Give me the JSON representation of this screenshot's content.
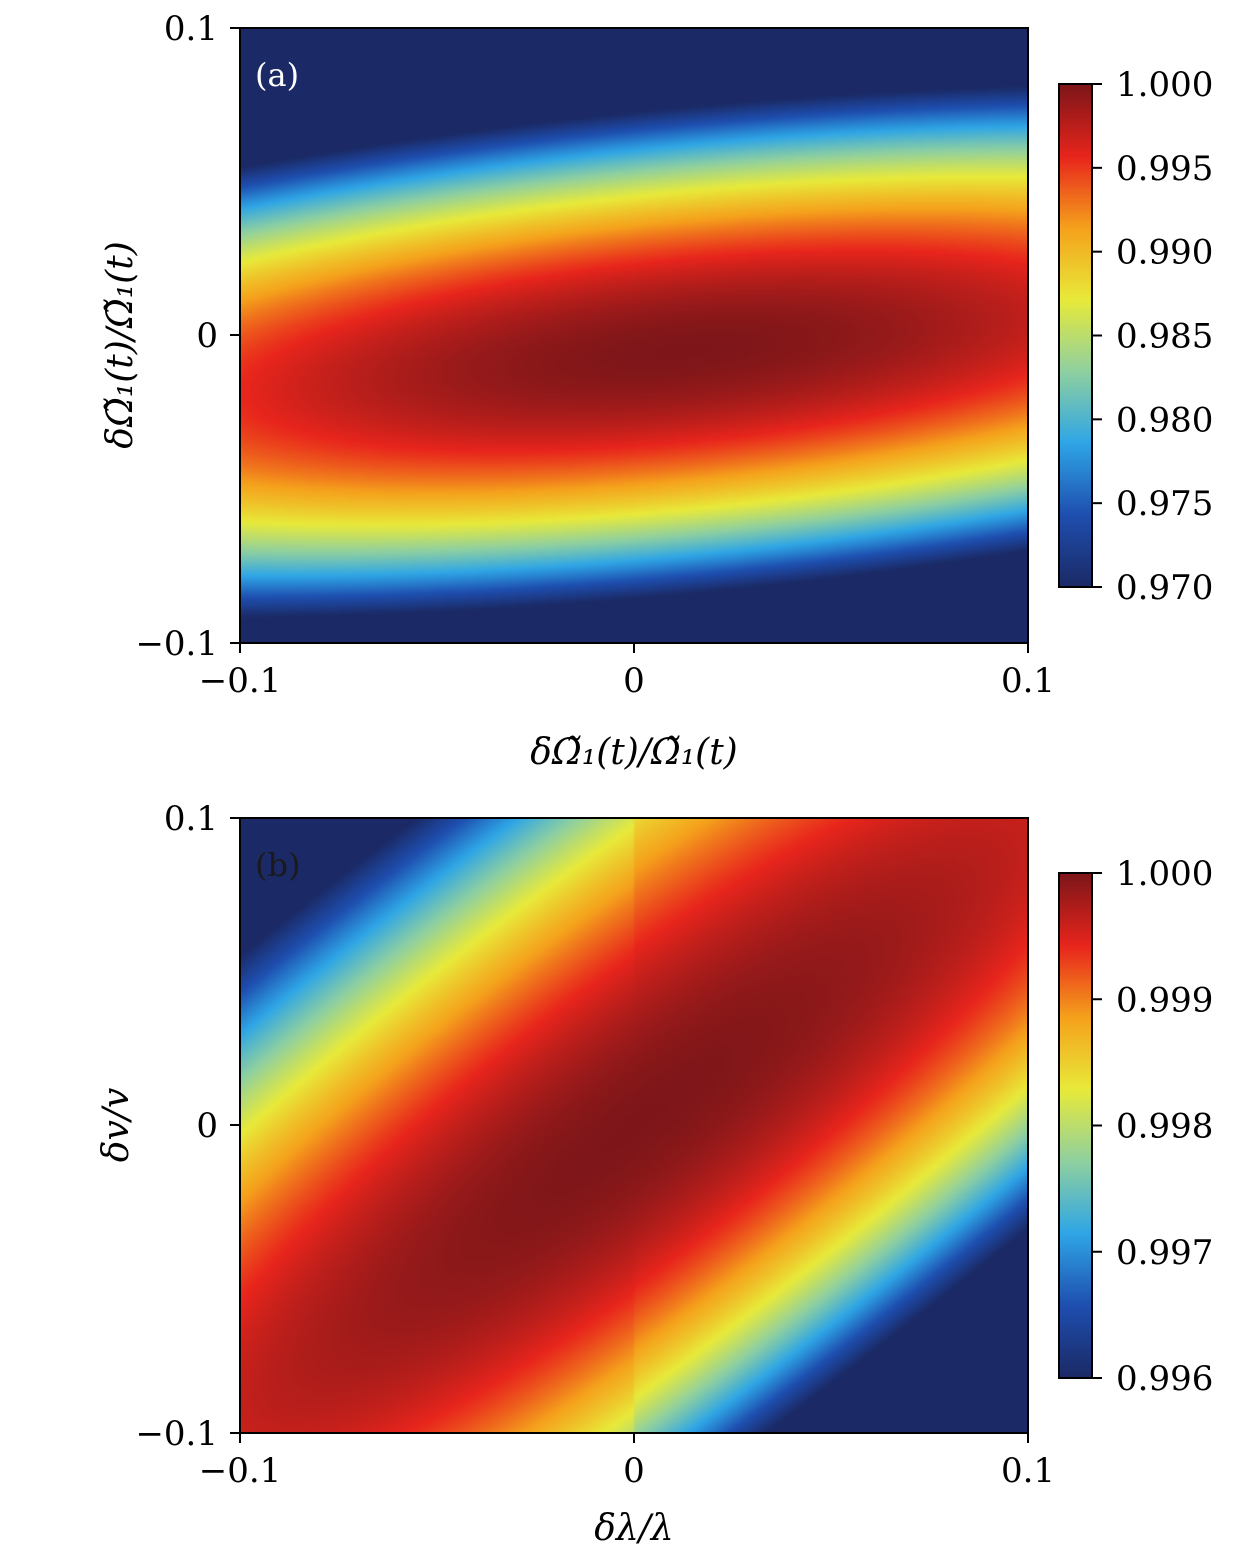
{
  "chart_data": [
    {
      "type": "heatmap",
      "panel_label": "(a)",
      "xlabel": "δΩ̃₁(t)/Ω̃₁(t)",
      "ylabel": "δΩ̃₁(t)/Ω̃₁(t)",
      "xlim": [
        -0.1,
        0.1
      ],
      "ylim": [
        -0.1,
        0.1
      ],
      "xticks": [
        -0.1,
        0,
        0.1
      ],
      "xtick_labels": [
        "−0.1",
        "0",
        "0.1"
      ],
      "yticks": [
        -0.1,
        0,
        0.1
      ],
      "ytick_labels": [
        "−0.1",
        "0",
        "0.1"
      ],
      "colorbar": {
        "range": [
          0.97,
          1.0
        ],
        "ticks": [
          1.0,
          0.995,
          0.99,
          0.985,
          0.98,
          0.975,
          0.97
        ],
        "tick_labels": [
          "1.000",
          "0.995",
          "0.990",
          "0.985",
          "0.980",
          "0.975",
          "0.970"
        ]
      },
      "colormap": [
        "#1b2a66",
        "#1e4fb0",
        "#2fa6e6",
        "#8fd0a0",
        "#e8ea3a",
        "#f5a21c",
        "#e8251c",
        "#7e1619"
      ],
      "peak": {
        "x": 0.012,
        "y": -0.005,
        "value": 1.0
      }
    },
    {
      "type": "heatmap",
      "panel_label": "(b)",
      "xlabel": "δλ/λ",
      "ylabel": "δv/v",
      "xlim": [
        -0.1,
        0.1
      ],
      "ylim": [
        -0.1,
        0.1
      ],
      "xticks": [
        -0.1,
        0,
        0.1
      ],
      "xtick_labels": [
        "−0.1",
        "0",
        "0.1"
      ],
      "yticks": [
        -0.1,
        0,
        0.1
      ],
      "ytick_labels": [
        "−0.1",
        "0",
        "0.1"
      ],
      "colorbar": {
        "range": [
          0.996,
          1.0
        ],
        "ticks": [
          1.0,
          0.999,
          0.998,
          0.997,
          0.996
        ],
        "tick_labels": [
          "1.000",
          "0.999",
          "0.998",
          "0.997",
          "0.996"
        ]
      },
      "colormap": [
        "#1b2a66",
        "#1e4fb0",
        "#2fa6e6",
        "#8fd0a0",
        "#e8ea3a",
        "#f5a21c",
        "#e8251c",
        "#7e1619"
      ],
      "peak": {
        "x": 0.0,
        "y": 0.0,
        "value": 1.0
      }
    }
  ]
}
